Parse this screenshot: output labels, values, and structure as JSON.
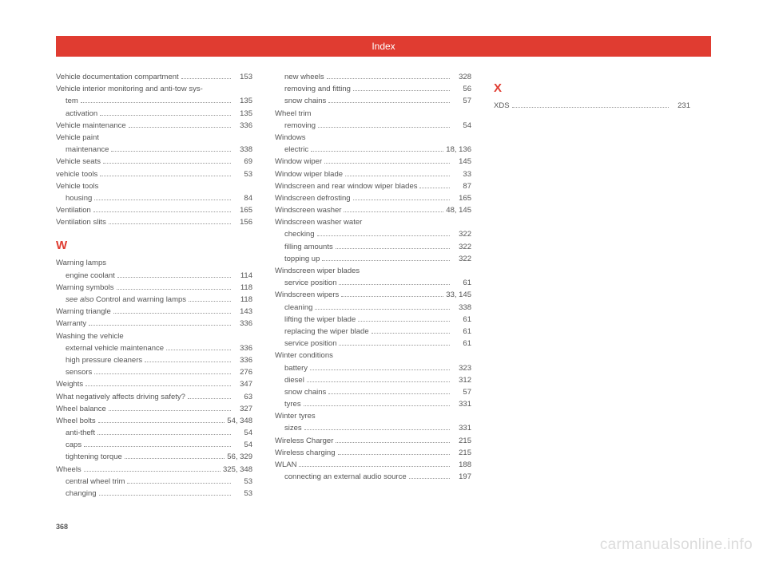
{
  "header": {
    "title": "Index"
  },
  "pageNumber": "368",
  "watermark": "carmanualsonline.info",
  "col1": [
    {
      "t": "e",
      "label": "Vehicle documentation compartment",
      "pg": "153"
    },
    {
      "t": "p",
      "label": "Vehicle interior monitoring and anti-tow sys-"
    },
    {
      "t": "s",
      "label": "tem",
      "pg": "135"
    },
    {
      "t": "s",
      "label": "activation",
      "pg": "135"
    },
    {
      "t": "e",
      "label": "Vehicle maintenance",
      "pg": "336"
    },
    {
      "t": "p",
      "label": "Vehicle paint"
    },
    {
      "t": "s",
      "label": "maintenance",
      "pg": "338"
    },
    {
      "t": "e",
      "label": "Vehicle seats",
      "pg": "69"
    },
    {
      "t": "e",
      "label": "vehicle tools",
      "pg": "53"
    },
    {
      "t": "p",
      "label": "Vehicle tools"
    },
    {
      "t": "s",
      "label": "housing",
      "pg": "84"
    },
    {
      "t": "e",
      "label": "Ventilation",
      "pg": "165"
    },
    {
      "t": "e",
      "label": "Ventilation slits",
      "pg": "156"
    },
    {
      "t": "h",
      "label": "W"
    },
    {
      "t": "p",
      "label": "Warning lamps"
    },
    {
      "t": "s",
      "label": "engine coolant",
      "pg": "114"
    },
    {
      "t": "e",
      "label": "Warning symbols",
      "pg": "118"
    },
    {
      "t": "si",
      "prefix": "see also ",
      "label": "Control and warning lamps",
      "pg": "118"
    },
    {
      "t": "e",
      "label": "Warning triangle",
      "pg": "143"
    },
    {
      "t": "e",
      "label": "Warranty",
      "pg": "336"
    },
    {
      "t": "p",
      "label": "Washing the vehicle"
    },
    {
      "t": "s",
      "label": "external vehicle maintenance",
      "pg": "336"
    },
    {
      "t": "s",
      "label": "high pressure cleaners",
      "pg": "336"
    },
    {
      "t": "s",
      "label": "sensors",
      "pg": "276"
    },
    {
      "t": "e",
      "label": "Weights",
      "pg": "347"
    },
    {
      "t": "e",
      "label": "What negatively affects driving safety?",
      "pg": "63"
    },
    {
      "t": "e",
      "label": "Wheel balance",
      "pg": "327"
    },
    {
      "t": "e",
      "label": "Wheel bolts",
      "pg": "54, 348"
    },
    {
      "t": "s",
      "label": "anti-theft",
      "pg": "54"
    },
    {
      "t": "s",
      "label": "caps",
      "pg": "54"
    },
    {
      "t": "s",
      "label": "tightening torque",
      "pg": "56, 329"
    },
    {
      "t": "e",
      "label": "Wheels",
      "pg": "325, 348"
    },
    {
      "t": "s",
      "label": "central wheel trim",
      "pg": "53"
    },
    {
      "t": "s",
      "label": "changing",
      "pg": "53"
    }
  ],
  "col2": [
    {
      "t": "s",
      "label": "new wheels",
      "pg": "328"
    },
    {
      "t": "s",
      "label": "removing and fitting",
      "pg": "56"
    },
    {
      "t": "s",
      "label": "snow chains",
      "pg": "57"
    },
    {
      "t": "p",
      "label": "Wheel trim"
    },
    {
      "t": "s",
      "label": "removing",
      "pg": "54"
    },
    {
      "t": "p",
      "label": "Windows"
    },
    {
      "t": "s",
      "label": "electric",
      "pg": "18, 136"
    },
    {
      "t": "e",
      "label": "Window wiper",
      "pg": "145"
    },
    {
      "t": "e",
      "label": "Window wiper blade",
      "pg": "33"
    },
    {
      "t": "e",
      "label": "Windscreen and rear window wiper blades",
      "pg": "87"
    },
    {
      "t": "e",
      "label": "Windscreen defrosting",
      "pg": "165"
    },
    {
      "t": "e",
      "label": "Windscreen washer",
      "pg": "48, 145"
    },
    {
      "t": "p",
      "label": "Windscreen washer water"
    },
    {
      "t": "s",
      "label": "checking",
      "pg": "322"
    },
    {
      "t": "s",
      "label": "filling amounts",
      "pg": "322"
    },
    {
      "t": "s",
      "label": "topping up",
      "pg": "322"
    },
    {
      "t": "p",
      "label": "Windscreen wiper blades"
    },
    {
      "t": "s",
      "label": "service position",
      "pg": "61"
    },
    {
      "t": "e",
      "label": "Windscreen wipers",
      "pg": "33, 145"
    },
    {
      "t": "s",
      "label": "cleaning",
      "pg": "338"
    },
    {
      "t": "s",
      "label": "lifting the wiper blade",
      "pg": "61"
    },
    {
      "t": "s",
      "label": "replacing the wiper blade",
      "pg": "61"
    },
    {
      "t": "s",
      "label": "service position",
      "pg": "61"
    },
    {
      "t": "p",
      "label": "Winter conditions"
    },
    {
      "t": "s",
      "label": "battery",
      "pg": "323"
    },
    {
      "t": "s",
      "label": "diesel",
      "pg": "312"
    },
    {
      "t": "s",
      "label": "snow chains",
      "pg": "57"
    },
    {
      "t": "s",
      "label": "tyres",
      "pg": "331"
    },
    {
      "t": "p",
      "label": "Winter tyres"
    },
    {
      "t": "s",
      "label": "sizes",
      "pg": "331"
    },
    {
      "t": "e",
      "label": "Wireless Charger",
      "pg": "215"
    },
    {
      "t": "e",
      "label": "Wireless charging",
      "pg": "215"
    },
    {
      "t": "e",
      "label": "WLAN",
      "pg": "188"
    },
    {
      "t": "s",
      "label": "connecting an external audio source",
      "pg": "197"
    }
  ],
  "col3": [
    {
      "t": "h",
      "label": "X"
    },
    {
      "t": "e",
      "label": "XDS",
      "pg": "231"
    }
  ]
}
